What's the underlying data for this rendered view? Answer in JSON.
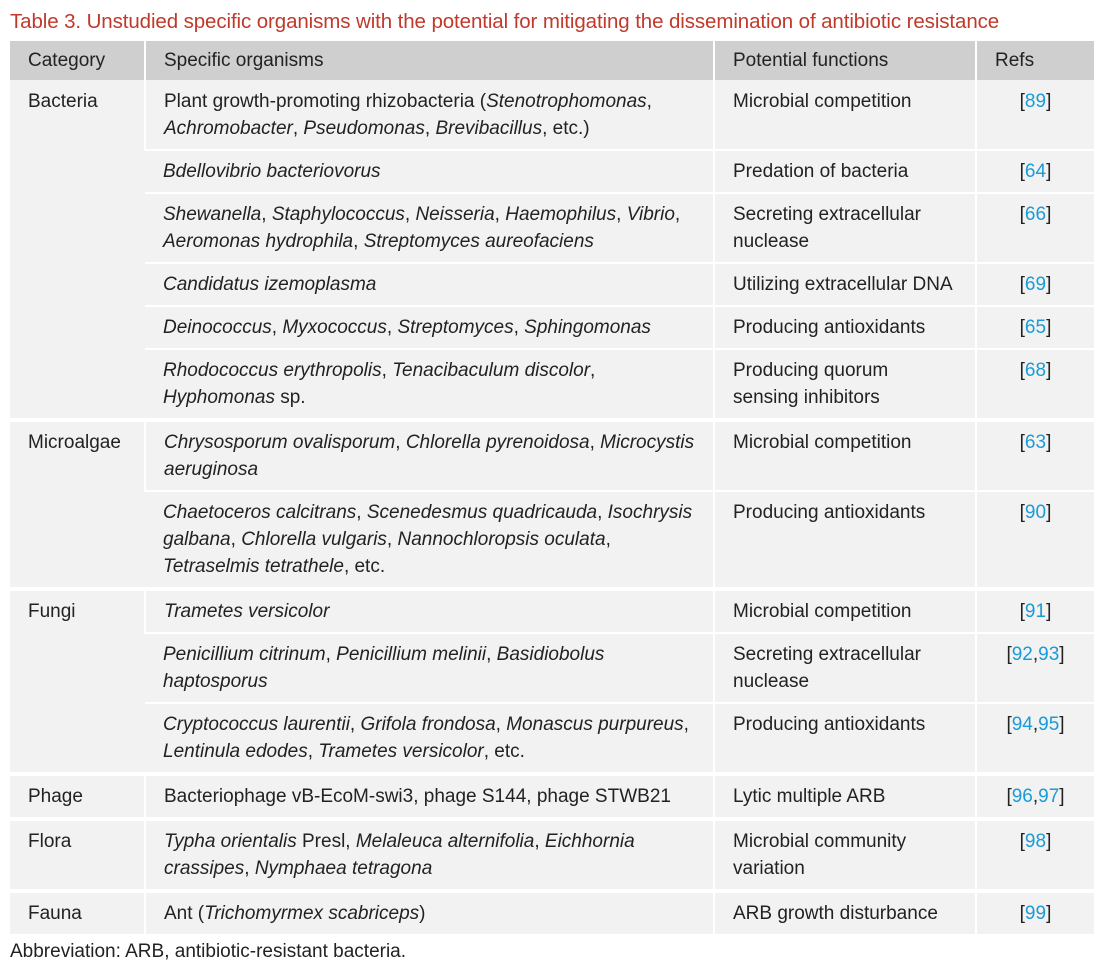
{
  "caption": "Table 3. Unstudied specific organisms with the potential for mitigating the dissemination of antibiotic resistance",
  "headers": {
    "category": "Category",
    "organisms": "Specific organisms",
    "functions": "Potential functions",
    "refs": "Refs"
  },
  "rows": {
    "r0": {
      "category": "Bacteria",
      "organisms": [
        {
          "t": "Plant growth-promoting rhizobacteria (",
          "i": false
        },
        {
          "t": "Stenotrophomonas",
          "i": true
        },
        {
          "t": ", ",
          "i": false
        },
        {
          "t": "Achromobacter",
          "i": true
        },
        {
          "t": ", ",
          "i": false
        },
        {
          "t": "Pseudomonas",
          "i": true
        },
        {
          "t": ", ",
          "i": false
        },
        {
          "t": "Brevibacillus",
          "i": true
        },
        {
          "t": ", etc.)",
          "i": false
        }
      ],
      "function": "Microbial competition",
      "refs": [
        "89"
      ]
    },
    "r1": {
      "organisms": [
        {
          "t": "Bdellovibrio bacteriovorus",
          "i": true
        }
      ],
      "function": "Predation of bacteria",
      "refs": [
        "64"
      ]
    },
    "r2": {
      "organisms": [
        {
          "t": "Shewanella",
          "i": true
        },
        {
          "t": ", ",
          "i": false
        },
        {
          "t": "Staphylococcus",
          "i": true
        },
        {
          "t": ", ",
          "i": false
        },
        {
          "t": "Neisseria",
          "i": true
        },
        {
          "t": ", ",
          "i": false
        },
        {
          "t": "Haemophilus",
          "i": true
        },
        {
          "t": ", ",
          "i": false
        },
        {
          "t": "Vibrio",
          "i": true
        },
        {
          "t": ", ",
          "i": false
        },
        {
          "t": "Aeromonas hydrophila",
          "i": true
        },
        {
          "t": ", ",
          "i": false
        },
        {
          "t": "Streptomyces aureofaciens",
          "i": true
        }
      ],
      "function": "Secreting extracellular nuclease",
      "refs": [
        "66"
      ]
    },
    "r3": {
      "organisms": [
        {
          "t": "Candidatus izemoplasma",
          "i": true
        }
      ],
      "function": "Utilizing extracellular DNA",
      "refs": [
        "69"
      ]
    },
    "r4": {
      "organisms": [
        {
          "t": "Deinococcus",
          "i": true
        },
        {
          "t": ", ",
          "i": false
        },
        {
          "t": "Myxococcus",
          "i": true
        },
        {
          "t": ", ",
          "i": false
        },
        {
          "t": "Streptomyces",
          "i": true
        },
        {
          "t": ", ",
          "i": false
        },
        {
          "t": "Sphingomonas",
          "i": true
        }
      ],
      "function": "Producing antioxidants",
      "refs": [
        "65"
      ]
    },
    "r5": {
      "organisms": [
        {
          "t": "Rhodococcus erythropolis",
          "i": true
        },
        {
          "t": ", ",
          "i": false
        },
        {
          "t": "Tenacibaculum discolor",
          "i": true
        },
        {
          "t": ", ",
          "i": false
        },
        {
          "t": "Hyphomonas",
          "i": true
        },
        {
          "t": " sp.",
          "i": false
        }
      ],
      "function": "Producing quorum sensing inhibitors",
      "refs": [
        "68"
      ]
    },
    "r6": {
      "category": "Microalgae",
      "organisms": [
        {
          "t": "Chrysosporum ovalisporum",
          "i": true
        },
        {
          "t": ", ",
          "i": false
        },
        {
          "t": "Chlorella pyrenoidosa",
          "i": true
        },
        {
          "t": ", ",
          "i": false
        },
        {
          "t": "Microcystis aeruginosa",
          "i": true
        }
      ],
      "function": "Microbial competition",
      "refs": [
        "63"
      ]
    },
    "r7": {
      "organisms": [
        {
          "t": "Chaetoceros calcitrans",
          "i": true
        },
        {
          "t": ", ",
          "i": false
        },
        {
          "t": "Scenedesmus quadricauda",
          "i": true
        },
        {
          "t": ", ",
          "i": false
        },
        {
          "t": "Isochrysis galbana",
          "i": true
        },
        {
          "t": ", ",
          "i": false
        },
        {
          "t": "Chlorella vulgaris",
          "i": true
        },
        {
          "t": ", ",
          "i": false
        },
        {
          "t": "Nannochloropsis oculata",
          "i": true
        },
        {
          "t": ", ",
          "i": false
        },
        {
          "t": "Tetraselmis tetrathele",
          "i": true
        },
        {
          "t": ", etc.",
          "i": false
        }
      ],
      "function": "Producing antioxidants",
      "refs": [
        "90"
      ]
    },
    "r8": {
      "category": "Fungi",
      "organisms": [
        {
          "t": "Trametes versicolor",
          "i": true
        }
      ],
      "function": "Microbial competition",
      "refs": [
        "91"
      ]
    },
    "r9": {
      "organisms": [
        {
          "t": "Penicillium citrinum",
          "i": true
        },
        {
          "t": ", ",
          "i": false
        },
        {
          "t": "Penicillium melinii",
          "i": true
        },
        {
          "t": ", ",
          "i": false
        },
        {
          "t": "Basidiobolus haptosporus",
          "i": true
        }
      ],
      "function": "Secreting extracellular nuclease",
      "refs": [
        "92",
        "93"
      ]
    },
    "r10": {
      "organisms": [
        {
          "t": "Cryptococcus laurentii",
          "i": true
        },
        {
          "t": ", ",
          "i": false
        },
        {
          "t": "Grifola frondosa",
          "i": true
        },
        {
          "t": ", ",
          "i": false
        },
        {
          "t": "Monascus purpureus",
          "i": true
        },
        {
          "t": ", ",
          "i": false
        },
        {
          "t": "Lentinula edodes",
          "i": true
        },
        {
          "t": ", ",
          "i": false
        },
        {
          "t": "Trametes versicolor",
          "i": true
        },
        {
          "t": ", etc.",
          "i": false
        }
      ],
      "function": "Producing antioxidants",
      "refs": [
        "94",
        "95"
      ]
    },
    "r11": {
      "category": "Phage",
      "organisms": [
        {
          "t": "Bacteriophage vB-EcoM-swi3, phage S144, phage STWB21",
          "i": false
        }
      ],
      "function": "Lytic multiple ARB",
      "refs": [
        "96",
        "97"
      ]
    },
    "r12": {
      "category": "Flora",
      "organisms": [
        {
          "t": "Typha orientalis",
          "i": true
        },
        {
          "t": " Presl, ",
          "i": false
        },
        {
          "t": "Melaleuca alternifolia",
          "i": true
        },
        {
          "t": ", ",
          "i": false
        },
        {
          "t": "Eichhornia crassipes",
          "i": true
        },
        {
          "t": ", ",
          "i": false
        },
        {
          "t": "Nymphaea tetragona",
          "i": true
        }
      ],
      "function": "Microbial community variation",
      "refs": [
        "98"
      ]
    },
    "r13": {
      "category": "Fauna",
      "organisms": [
        {
          "t": "Ant (",
          "i": false
        },
        {
          "t": "Trichomyrmex scabriceps",
          "i": true
        },
        {
          "t": ")",
          "i": false
        }
      ],
      "function": "ARB growth disturbance",
      "refs": [
        "99"
      ]
    }
  },
  "footnote": "Abbreviation: ARB, antibiotic-resistant bacteria.",
  "colors": {
    "caption": "#c0392b",
    "header_bg": "#cfcfcf",
    "body_bg": "#f2f2f2",
    "link": "#1a9bd7"
  }
}
